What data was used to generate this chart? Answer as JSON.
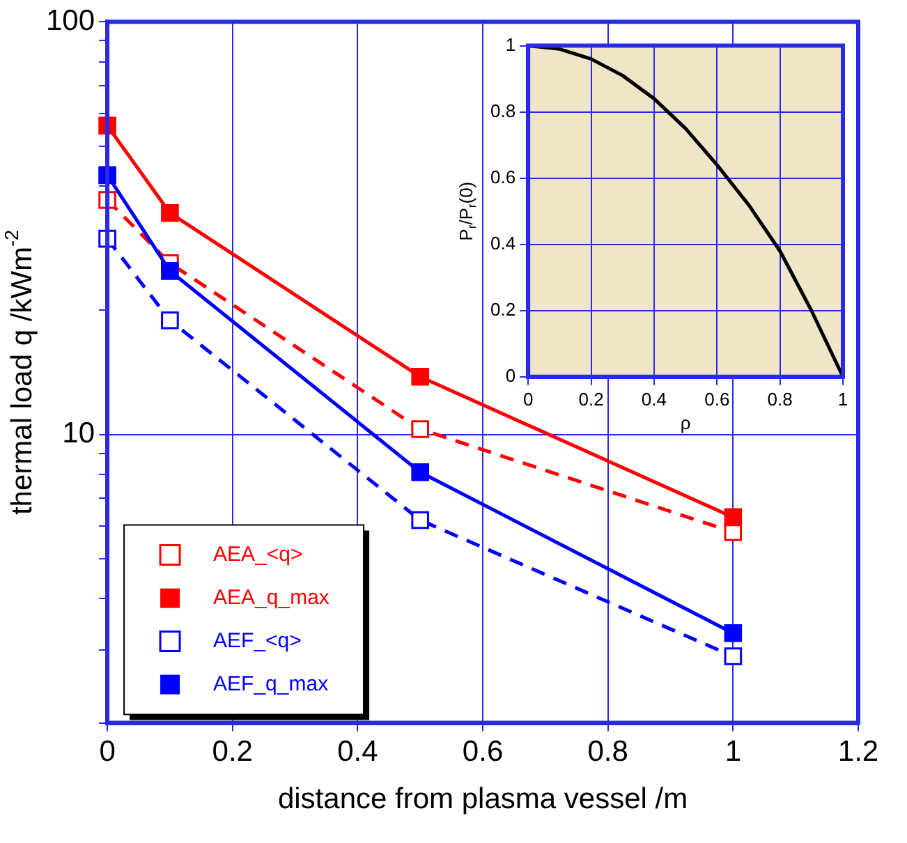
{
  "chart_data": [
    {
      "type": "line",
      "xlabel": "distance from plasma vessel /m",
      "ylabel": "thermal load q /kWm$^{-2}$",
      "log": "y",
      "grid": true,
      "legend": "bottom left",
      "marker": "square",
      "x": [
        0,
        0.1,
        0.5,
        1
      ],
      "xlim": [
        0,
        1.2
      ],
      "xticks": [
        0,
        0.2,
        0.4,
        0.6,
        0.8,
        1,
        1.2
      ],
      "ylim": [
        2,
        100
      ],
      "yticks": [
        {
          "value": 2,
          "label": null
        },
        {
          "value": 3,
          "label": null
        },
        {
          "value": 4,
          "label": null
        },
        {
          "value": 5,
          "label": null
        },
        {
          "value": 6,
          "label": null
        },
        {
          "value": 7,
          "label": null
        },
        {
          "value": 8,
          "label": null
        },
        {
          "value": 9,
          "label": null
        },
        10,
        {
          "value": 20,
          "label": null
        },
        {
          "value": 30,
          "label": null
        },
        {
          "value": 40,
          "label": null
        },
        {
          "value": 50,
          "label": null
        },
        {
          "value": 60,
          "label": null
        },
        {
          "value": 70,
          "label": null
        },
        {
          "value": 80,
          "label": null
        },
        {
          "value": 90,
          "label": null
        },
        100
      ],
      "series": [
        {
          "name": "AEA_<q>",
          "color": "#ff0000",
          "line_style": "dashed",
          "values": [
            37,
            26,
            10.3,
            5.8
          ]
        },
        {
          "name": "AEA_q_max",
          "color": "#ff0000",
          "line_style": "solid",
          "values": [
            56,
            34.4,
            13.8,
            6.3
          ]
        },
        {
          "name": "AEF_<q>",
          "color": "#0000ff",
          "line_style": "dashed",
          "values": [
            29.8,
            18.9,
            6.2,
            2.9
          ]
        },
        {
          "name": "AEF_q_max",
          "color": "#0000ff",
          "line_style": "solid",
          "values": [
            42.5,
            24.9,
            8.1,
            3.3
          ]
        }
      ]
    },
    {
      "type": "line",
      "xlabel": "ρ",
      "ylabel": "P$_{r}$/P$_{r}$(0)",
      "grid": true,
      "marker": "none",
      "x": [
        0,
        0.1,
        0.2,
        0.3,
        0.4,
        0.5,
        0.6,
        0.7,
        0.8,
        0.9,
        1
      ],
      "xlim": [
        0,
        1
      ],
      "xticks": [
        0,
        0.2,
        0.4,
        0.6,
        0.8,
        1
      ],
      "ylim": [
        0,
        1
      ],
      "yticks": [
        0,
        0.2,
        0.4,
        0.6,
        0.8,
        1
      ],
      "series": [
        {
          "color": "#000000",
          "line_style": "solid",
          "values": [
            1,
            0.99,
            0.96,
            0.91,
            0.84,
            0.75,
            0.64,
            0.52,
            0.38,
            0.2,
            0
          ]
        }
      ]
    }
  ]
}
